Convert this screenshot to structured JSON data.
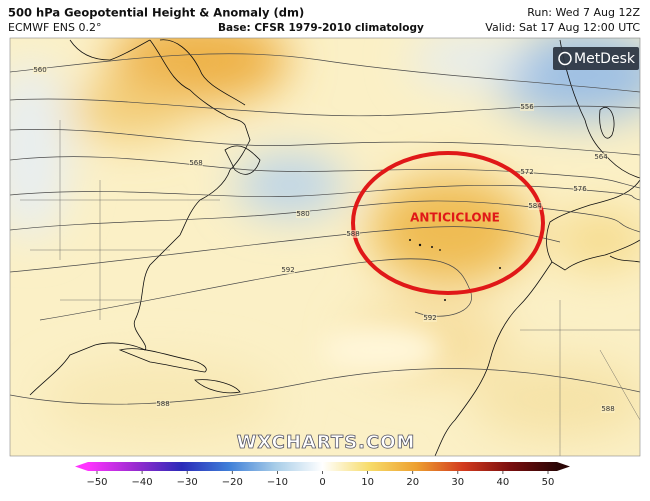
{
  "header": {
    "title": "500 hPa Geopotential Height & Anomaly (dm)",
    "model": "ECMWF ENS 0.2°",
    "base": "Base: CFSR 1979-2010 climatology",
    "run": "Run: Wed 7 Aug 12Z",
    "valid": "Valid: Sat 17 Aug 12:00 UTC"
  },
  "logo": "MetDesk",
  "watermark": "WXCHARTS.COM",
  "annotation": "ANTICICLONE",
  "contour_labels": [
    560,
    568,
    580,
    588,
    592,
    556,
    564,
    572,
    576,
    584,
    592,
    588,
    588
  ],
  "colorbar": {
    "lim": [
      -50,
      50
    ],
    "ticks": [
      {
        "value": -50,
        "label": "−50"
      },
      {
        "value": -40,
        "label": "−40"
      },
      {
        "value": -30,
        "label": "−30"
      },
      {
        "value": -20,
        "label": "−20"
      },
      {
        "value": -10,
        "label": "−10"
      },
      0,
      10,
      20,
      30,
      40,
      50
    ]
  }
}
